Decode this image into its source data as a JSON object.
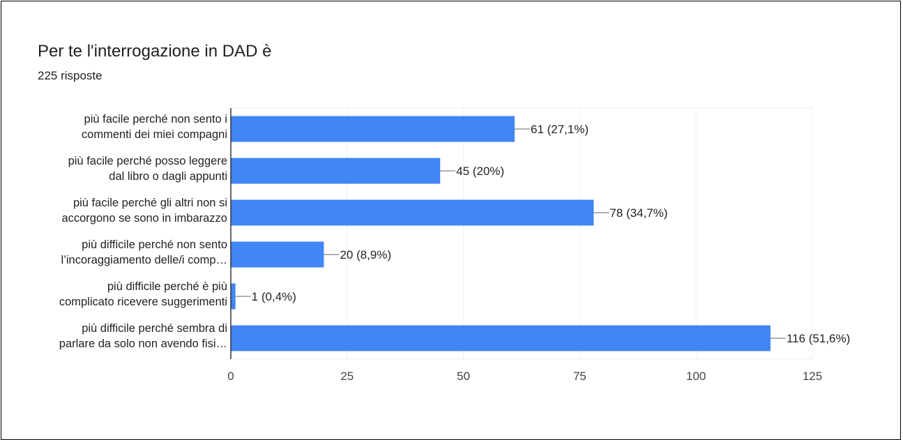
{
  "header": {
    "title": "Per te l'interrogazione in DAD è",
    "subtitle": "225 risposte"
  },
  "colors": {
    "bar": "#4285f4",
    "grid": "#eeeeee",
    "axis": "#333333",
    "leader": "#666666"
  },
  "chart_data": {
    "type": "bar",
    "orientation": "horizontal",
    "title": "Per te l'interrogazione in DAD è",
    "subtitle": "225 risposte",
    "categories": [
      [
        "più facile perché non sento i",
        "commenti dei miei compagni"
      ],
      [
        "più facile perché posso leggere",
        "dal libro o dagli appunti"
      ],
      [
        "più facile perché gli altri non si",
        "accorgono se sono in imbarazzo"
      ],
      [
        "più difficile perché non sento",
        "l’incoraggiamento delle/i comp…"
      ],
      [
        "più difficile perché è più",
        "complicato ricevere suggerimenti"
      ],
      [
        "più difficile perché sembra di",
        "parlare da solo non avendo fisi…"
      ]
    ],
    "values": [
      61,
      45,
      78,
      20,
      1,
      116
    ],
    "value_labels": [
      "61 (27,1%)",
      "45 (20%)",
      "78 (34,7%)",
      "20 (8,9%)",
      "1 (0,4%)",
      "116 (51,6%)"
    ],
    "xlim": [
      0,
      125
    ],
    "ticks": [
      0,
      25,
      50,
      75,
      100,
      125
    ],
    "tick_labels": [
      "0",
      "25",
      "50",
      "75",
      "100",
      "125"
    ],
    "grid": true,
    "legend": "none"
  }
}
